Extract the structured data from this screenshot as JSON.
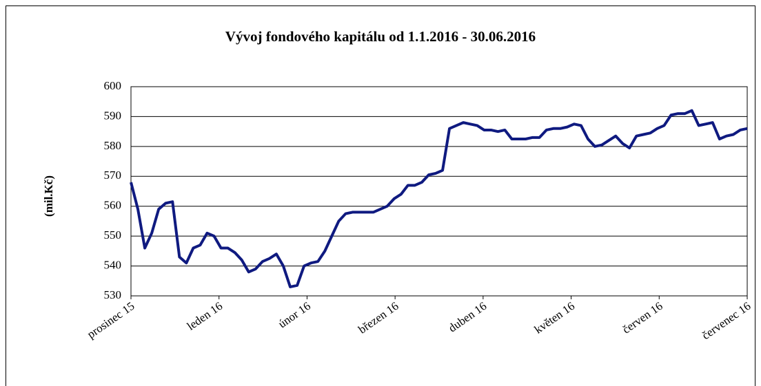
{
  "chart_data": {
    "type": "line",
    "title": "Vývoj fondového kapitálu od 1.1.2016 - 30.06.2016",
    "y_label": "(mil.Kč)",
    "x_labels": [
      "prosinec 15",
      "leden 16",
      "únor 16",
      "březen 16",
      "duben 16",
      "květen 16",
      "červen 16",
      "červenec 16"
    ],
    "series": [
      {
        "color": "#0f1a80",
        "values": [
          568,
          559,
          546,
          551,
          559,
          561,
          561.5,
          543,
          541,
          546,
          547,
          551,
          550,
          546,
          546,
          544.5,
          542,
          538,
          539,
          541.5,
          542.5,
          544,
          540,
          533,
          533.5,
          540,
          541,
          541.5,
          545,
          550,
          555,
          557.5,
          558,
          558,
          558,
          558,
          559,
          560,
          562.5,
          564,
          567,
          567,
          568,
          570.5,
          571,
          572,
          586,
          587,
          588,
          587.5,
          587,
          585.5,
          585.5,
          585,
          585.5,
          582.5,
          582.5,
          582.5,
          583,
          583,
          585.5,
          586,
          586,
          586.5,
          587.5,
          587,
          582.5,
          580,
          580.5,
          582,
          583.5,
          581,
          579.5,
          583.5,
          584,
          584.5,
          586,
          587,
          590.5,
          591,
          591,
          592,
          587,
          587.5,
          588,
          582.5,
          583.5,
          584,
          585.5,
          586
        ]
      }
    ],
    "ylim": [
      530,
      600
    ],
    "yticks": [
      530,
      540,
      550,
      560,
      570,
      580,
      590,
      600
    ],
    "grid": true
  }
}
